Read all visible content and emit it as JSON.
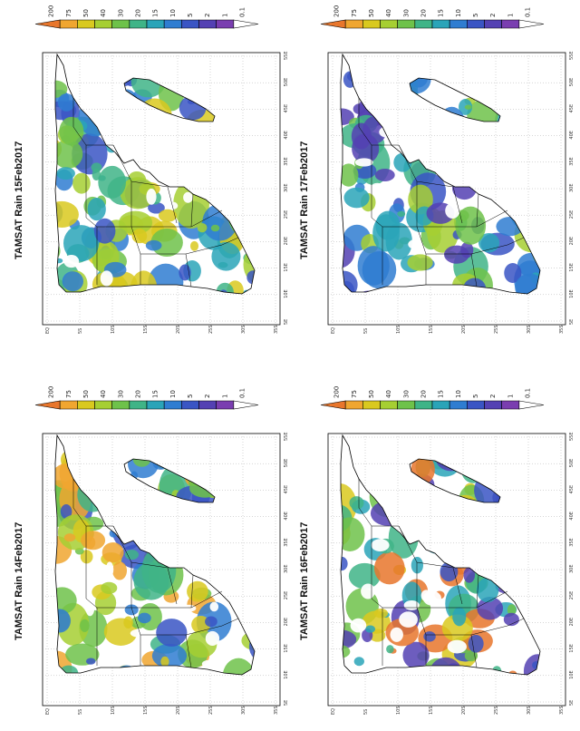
{
  "panels": [
    {
      "id": "p15",
      "title": "TAMSAT Rain  15Feb2017"
    },
    {
      "id": "p17",
      "title": "TAMSAT Rain  17Feb2017"
    },
    {
      "id": "p14",
      "title": "TAMSAT Rain  14Feb2017"
    },
    {
      "id": "p16",
      "title": "TAMSAT Rain  16Feb2017"
    }
  ],
  "colorbar": {
    "labels": [
      "200",
      "75",
      "50",
      "40",
      "30",
      "20",
      "15",
      "10",
      "5",
      "2",
      "1",
      "0.1"
    ],
    "colors": [
      "#e8762c",
      "#f0a630",
      "#d9c91f",
      "#a6cf32",
      "#6ec24a",
      "#3fb487",
      "#2aa4b8",
      "#2f7dd1",
      "#3a55c4",
      "#5441b3",
      "#7a3eb0",
      "#ffffff"
    ]
  },
  "map": {
    "lat_ticks": [
      "EQ",
      "5S",
      "10S",
      "15S",
      "20S",
      "25S",
      "30S",
      "35S"
    ],
    "lon_ticks": [
      "5E",
      "10E",
      "15E",
      "20E",
      "25E",
      "30E",
      "35E",
      "40E",
      "45E",
      "50E",
      "55E"
    ],
    "grid": "dotted",
    "projection": "rotated 90 degrees"
  }
}
